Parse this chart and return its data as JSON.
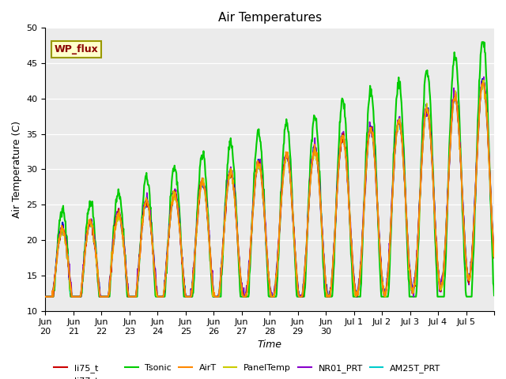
{
  "title": "Air Temperatures",
  "xlabel": "Time",
  "ylabel": "Air Temperature (C)",
  "ylim": [
    10,
    50
  ],
  "plot_bg_color": "#ebebeb",
  "annotation_text": "WP_flux",
  "annotation_bg": "#ffffcc",
  "annotation_border": "#999900",
  "annotation_text_color": "#8b0000",
  "series": {
    "li75_t": {
      "color": "#cc0000",
      "lw": 1.2,
      "zorder": 3
    },
    "li77_temp": {
      "color": "#0000cc",
      "lw": 1.2,
      "zorder": 3
    },
    "Tsonic": {
      "color": "#00cc00",
      "lw": 1.5,
      "zorder": 2
    },
    "AirT": {
      "color": "#ff8800",
      "lw": 1.2,
      "zorder": 4
    },
    "PanelTemp": {
      "color": "#cccc00",
      "lw": 1.2,
      "zorder": 4
    },
    "NR01_PRT": {
      "color": "#8800cc",
      "lw": 1.2,
      "zorder": 3
    },
    "AM25T_PRT": {
      "color": "#00cccc",
      "lw": 1.2,
      "zorder": 3
    }
  },
  "tick_positions": [
    0,
    1,
    2,
    3,
    4,
    5,
    6,
    7,
    8,
    9,
    10,
    11,
    12,
    13,
    14,
    15,
    16
  ],
  "tick_labels": [
    "Jun\n20",
    "Jun\n21",
    "Jun\n22",
    "Jun\n23",
    "Jun\n24",
    "Jun\n25",
    "Jun\n26",
    "Jun\n27",
    "Jun\n28",
    "Jun\n29",
    "Jun\n30",
    "Jul 1",
    "Jul 2",
    "Jul 3",
    "Jul 4",
    "Jul 5",
    ""
  ],
  "yticks": [
    10,
    15,
    20,
    25,
    30,
    35,
    40,
    45,
    50
  ],
  "n_points": 960
}
